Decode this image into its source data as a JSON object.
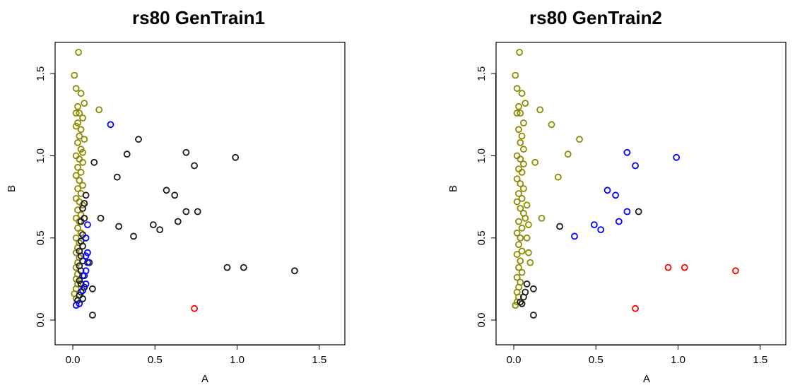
{
  "colors": {
    "olive": "#8b8b00",
    "black": "#1a1a1a",
    "blue": "#0000ff",
    "red": "#ff0000"
  },
  "chart_data": [
    {
      "type": "scatter",
      "title": "rs80 GenTrain1",
      "xlabel": "A",
      "ylabel": "B",
      "xlim": [
        0,
        1.65
      ],
      "ylim": [
        0,
        1.65
      ],
      "xticks": [
        "0.0",
        "0.5",
        "1.0",
        "1.5"
      ],
      "yticks": [
        "0.0",
        "0.5",
        "1.0",
        "1.5"
      ],
      "grid": false,
      "series": [
        {
          "color_key": "olive",
          "points": [
            [
              0.035,
              1.63
            ],
            [
              0.01,
              1.49
            ],
            [
              0.02,
              1.41
            ],
            [
              0.05,
              1.38
            ],
            [
              0.07,
              1.32
            ],
            [
              0.16,
              1.28
            ],
            [
              0.03,
              1.3
            ],
            [
              0.02,
              1.26
            ],
            [
              0.04,
              1.26
            ],
            [
              0.06,
              1.23
            ],
            [
              0.03,
              1.2
            ],
            [
              0.02,
              1.18
            ],
            [
              0.05,
              1.16
            ],
            [
              0.04,
              1.12
            ],
            [
              0.07,
              1.1
            ],
            [
              0.03,
              1.08
            ],
            [
              0.05,
              1.04
            ],
            [
              0.06,
              1.02
            ],
            [
              0.02,
              1.0
            ],
            [
              0.04,
              0.98
            ],
            [
              0.06,
              0.96
            ],
            [
              0.03,
              0.93
            ],
            [
              0.05,
              0.9
            ],
            [
              0.02,
              0.88
            ],
            [
              0.04,
              0.85
            ],
            [
              0.06,
              0.82
            ],
            [
              0.03,
              0.8
            ],
            [
              0.05,
              0.77
            ],
            [
              0.02,
              0.74
            ],
            [
              0.04,
              0.72
            ],
            [
              0.06,
              0.7
            ],
            [
              0.03,
              0.67
            ],
            [
              0.05,
              0.64
            ],
            [
              0.02,
              0.62
            ],
            [
              0.04,
              0.6
            ],
            [
              0.03,
              0.56
            ],
            [
              0.05,
              0.53
            ],
            [
              0.02,
              0.5
            ],
            [
              0.04,
              0.47
            ],
            [
              0.03,
              0.44
            ],
            [
              0.02,
              0.41
            ],
            [
              0.04,
              0.38
            ],
            [
              0.03,
              0.35
            ],
            [
              0.02,
              0.32
            ],
            [
              0.03,
              0.28
            ],
            [
              0.02,
              0.25
            ],
            [
              0.03,
              0.22
            ],
            [
              0.02,
              0.19
            ],
            [
              0.01,
              0.16
            ],
            [
              0.02,
              0.13
            ]
          ]
        },
        {
          "color_key": "black",
          "points": [
            [
              0.4,
              1.1
            ],
            [
              0.33,
              1.01
            ],
            [
              0.69,
              1.02
            ],
            [
              0.99,
              0.99
            ],
            [
              0.13,
              0.96
            ],
            [
              0.74,
              0.94
            ],
            [
              0.27,
              0.87
            ],
            [
              0.57,
              0.79
            ],
            [
              0.62,
              0.76
            ],
            [
              0.08,
              0.76
            ],
            [
              0.07,
              0.71
            ],
            [
              0.06,
              0.68
            ],
            [
              0.69,
              0.66
            ],
            [
              0.76,
              0.66
            ],
            [
              0.17,
              0.62
            ],
            [
              0.07,
              0.62
            ],
            [
              0.05,
              0.6
            ],
            [
              0.64,
              0.6
            ],
            [
              0.49,
              0.58
            ],
            [
              0.28,
              0.57
            ],
            [
              0.53,
              0.55
            ],
            [
              0.06,
              0.52
            ],
            [
              0.37,
              0.51
            ],
            [
              0.05,
              0.48
            ],
            [
              0.06,
              0.45
            ],
            [
              0.04,
              0.42
            ],
            [
              0.05,
              0.39
            ],
            [
              0.06,
              0.36
            ],
            [
              0.04,
              0.33
            ],
            [
              0.1,
              0.35
            ],
            [
              0.94,
              0.32
            ],
            [
              1.04,
              0.32
            ],
            [
              1.35,
              0.3
            ],
            [
              0.05,
              0.3
            ],
            [
              0.06,
              0.27
            ],
            [
              0.04,
              0.24
            ],
            [
              0.05,
              0.22
            ],
            [
              0.07,
              0.2
            ],
            [
              0.12,
              0.19
            ],
            [
              0.05,
              0.17
            ],
            [
              0.04,
              0.15
            ],
            [
              0.06,
              0.13
            ],
            [
              0.03,
              0.12
            ],
            [
              0.12,
              0.03
            ]
          ]
        },
        {
          "color_key": "blue",
          "points": [
            [
              0.23,
              1.19
            ],
            [
              0.09,
              0.58
            ],
            [
              0.08,
              0.5
            ],
            [
              0.09,
              0.41
            ],
            [
              0.08,
              0.39
            ],
            [
              0.09,
              0.35
            ],
            [
              0.08,
              0.3
            ],
            [
              0.07,
              0.27
            ],
            [
              0.08,
              0.22
            ],
            [
              0.06,
              0.18
            ],
            [
              0.04,
              0.1
            ],
            [
              0.02,
              0.09
            ]
          ]
        },
        {
          "color_key": "red",
          "points": [
            [
              0.74,
              0.07
            ]
          ]
        }
      ]
    },
    {
      "type": "scatter",
      "title": "rs80 GenTrain2",
      "xlabel": "A",
      "ylabel": "B",
      "xlim": [
        0,
        1.65
      ],
      "ylim": [
        0,
        1.65
      ],
      "xticks": [
        "0.0",
        "0.5",
        "1.0",
        "1.5"
      ],
      "yticks": [
        "0.0",
        "0.5",
        "1.0",
        "1.5"
      ],
      "grid": false,
      "series": [
        {
          "color_key": "olive",
          "points": [
            [
              0.035,
              1.63
            ],
            [
              0.01,
              1.49
            ],
            [
              0.02,
              1.41
            ],
            [
              0.05,
              1.38
            ],
            [
              0.07,
              1.32
            ],
            [
              0.16,
              1.28
            ],
            [
              0.03,
              1.3
            ],
            [
              0.02,
              1.26
            ],
            [
              0.04,
              1.26
            ],
            [
              0.23,
              1.19
            ],
            [
              0.06,
              1.2
            ],
            [
              0.4,
              1.1
            ],
            [
              0.03,
              1.16
            ],
            [
              0.05,
              1.12
            ],
            [
              0.04,
              1.08
            ],
            [
              0.33,
              1.01
            ],
            [
              0.06,
              1.04
            ],
            [
              0.02,
              1.0
            ],
            [
              0.13,
              0.96
            ],
            [
              0.04,
              0.98
            ],
            [
              0.06,
              0.95
            ],
            [
              0.03,
              0.92
            ],
            [
              0.05,
              0.9
            ],
            [
              0.27,
              0.87
            ],
            [
              0.02,
              0.86
            ],
            [
              0.04,
              0.83
            ],
            [
              0.06,
              0.8
            ],
            [
              0.03,
              0.77
            ],
            [
              0.05,
              0.74
            ],
            [
              0.08,
              0.7
            ],
            [
              0.02,
              0.72
            ],
            [
              0.04,
              0.68
            ],
            [
              0.06,
              0.65
            ],
            [
              0.17,
              0.62
            ],
            [
              0.07,
              0.62
            ],
            [
              0.03,
              0.6
            ],
            [
              0.05,
              0.56
            ],
            [
              0.09,
              0.58
            ],
            [
              0.02,
              0.53
            ],
            [
              0.04,
              0.5
            ],
            [
              0.08,
              0.5
            ],
            [
              0.03,
              0.46
            ],
            [
              0.05,
              0.42
            ],
            [
              0.09,
              0.41
            ],
            [
              0.02,
              0.4
            ],
            [
              0.04,
              0.36
            ],
            [
              0.1,
              0.35
            ],
            [
              0.03,
              0.32
            ],
            [
              0.05,
              0.29
            ],
            [
              0.02,
              0.26
            ],
            [
              0.04,
              0.23
            ],
            [
              0.03,
              0.2
            ],
            [
              0.02,
              0.17
            ],
            [
              0.03,
              0.14
            ],
            [
              0.02,
              0.11
            ],
            [
              0.01,
              0.09
            ]
          ]
        },
        {
          "color_key": "blue",
          "points": [
            [
              0.69,
              1.02
            ],
            [
              0.99,
              0.99
            ],
            [
              0.74,
              0.94
            ],
            [
              0.57,
              0.79
            ],
            [
              0.62,
              0.76
            ],
            [
              0.69,
              0.66
            ],
            [
              0.64,
              0.6
            ],
            [
              0.49,
              0.58
            ],
            [
              0.53,
              0.55
            ],
            [
              0.37,
              0.51
            ]
          ]
        },
        {
          "color_key": "black",
          "points": [
            [
              0.76,
              0.66
            ],
            [
              0.28,
              0.57
            ],
            [
              0.08,
              0.22
            ],
            [
              0.12,
              0.19
            ],
            [
              0.07,
              0.17
            ],
            [
              0.06,
              0.14
            ],
            [
              0.04,
              0.11
            ],
            [
              0.05,
              0.1
            ],
            [
              0.12,
              0.03
            ]
          ]
        },
        {
          "color_key": "red",
          "points": [
            [
              0.94,
              0.32
            ],
            [
              1.04,
              0.32
            ],
            [
              1.35,
              0.3
            ],
            [
              0.74,
              0.07
            ]
          ]
        }
      ]
    }
  ]
}
